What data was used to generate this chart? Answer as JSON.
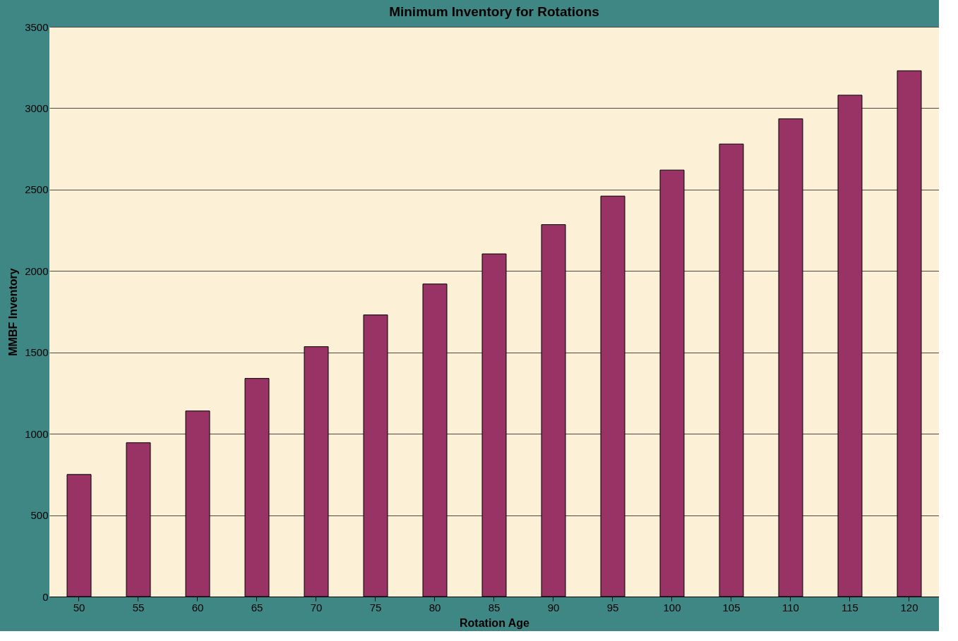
{
  "chart_data": {
    "type": "bar",
    "title": "Minimum Inventory for Rotations",
    "xlabel": "Rotation Age",
    "ylabel": "MMBF Inventory",
    "categories": [
      "50",
      "55",
      "60",
      "65",
      "70",
      "75",
      "80",
      "85",
      "90",
      "95",
      "100",
      "105",
      "110",
      "115",
      "120"
    ],
    "values": [
      750,
      945,
      1140,
      1340,
      1535,
      1730,
      1920,
      2105,
      2285,
      2460,
      2620,
      2780,
      2935,
      3080,
      3230
    ],
    "color": "#993366",
    "ylim": [
      0,
      3500
    ],
    "yticks": [
      0,
      500,
      1000,
      1500,
      2000,
      2500,
      3000,
      3500
    ],
    "grid": "y"
  }
}
